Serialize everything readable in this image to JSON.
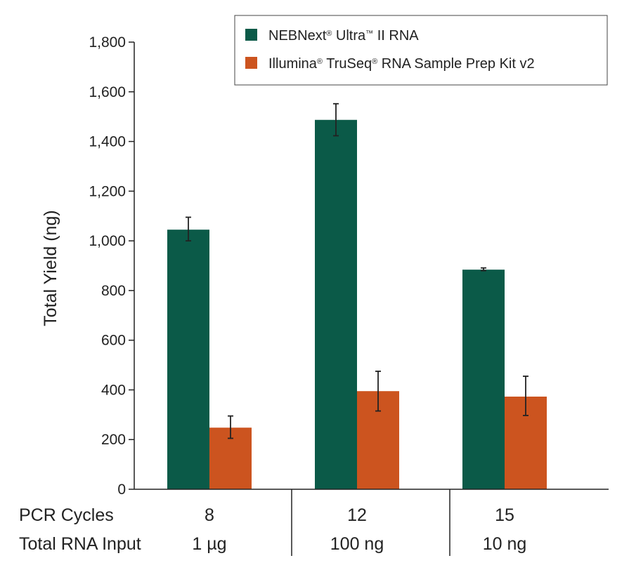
{
  "chart_data": {
    "type": "bar",
    "ylabel": "Total Yield (ng)",
    "ylim": [
      0,
      1800
    ],
    "yticks": [
      0,
      200,
      400,
      600,
      800,
      1000,
      1200,
      1400,
      1600,
      1800
    ],
    "ytick_labels": [
      "0",
      "200",
      "400",
      "600",
      "800",
      "1,000",
      "1,200",
      "1,400",
      "1,600",
      "1,800"
    ],
    "categories": [
      "8",
      "12",
      "15"
    ],
    "category_rows": [
      {
        "label": "PCR Cycles",
        "values": [
          "8",
          "12",
          "15"
        ]
      },
      {
        "label": "Total RNA Input",
        "values": [
          "1 µg",
          "100 ng",
          "10 ng"
        ]
      }
    ],
    "series": [
      {
        "name": "NEBNext",
        "name_sup1": "®",
        "name_mid": " Ultra",
        "name_sup2": "™",
        "name_end": " II RNA",
        "color": "#0b5a48",
        "values": [
          1045,
          1487,
          884
        ],
        "err_high": [
          1095,
          1552,
          891
        ],
        "err_low": [
          1000,
          1423,
          880
        ]
      },
      {
        "name": "Illumina",
        "name_sup1": "®",
        "name_mid": " TruSeq",
        "name_sup2": "®",
        "name_end": " RNA Sample Prep Kit v2",
        "color": "#cc541f",
        "values": [
          248,
          395,
          373
        ],
        "err_high": [
          295,
          475,
          455
        ],
        "err_low": [
          205,
          315,
          297
        ]
      }
    ],
    "legend_position": "top-right",
    "grid": false
  }
}
